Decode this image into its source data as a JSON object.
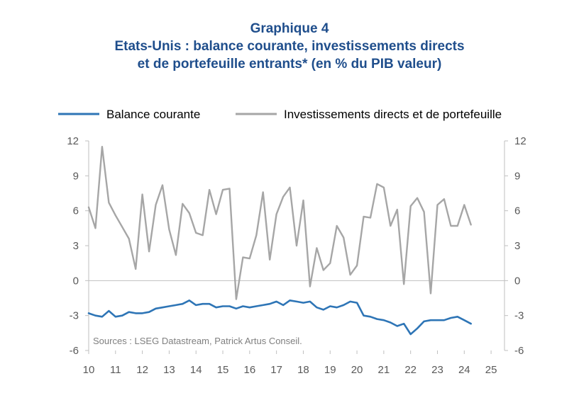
{
  "chart_data": {
    "type": "line",
    "title": "Graphique 4",
    "subtitle_lines": [
      "Etats-Unis : balance courante,  investissements directs",
      "et de portefeuille entrants* (en % du PIB valeur)"
    ],
    "source": "Sources : LSEG Datastream, Patrick Artus Conseil.",
    "xlim": [
      10,
      25.5
    ],
    "ylim": [
      -6,
      12
    ],
    "x_ticks": [
      "10",
      "11",
      "12",
      "13",
      "14",
      "15",
      "16",
      "17",
      "18",
      "19",
      "20",
      "21",
      "22",
      "23",
      "24",
      "25"
    ],
    "y_ticks": [
      "12",
      "9",
      "6",
      "3",
      "0",
      "-3",
      "-6"
    ],
    "legend_position": "top",
    "colors": {
      "balance": "#2e75b6",
      "invest": "#a6a6a6",
      "title": "#1f4e8c"
    },
    "series": [
      {
        "name": "Balance courante",
        "x": [
          10.0,
          10.25,
          10.5,
          10.75,
          11.0,
          11.25,
          11.5,
          11.75,
          12.0,
          12.25,
          12.5,
          12.75,
          13.0,
          13.25,
          13.5,
          13.75,
          14.0,
          14.25,
          14.5,
          14.75,
          15.0,
          15.25,
          15.5,
          15.75,
          16.0,
          16.25,
          16.5,
          16.75,
          17.0,
          17.25,
          17.5,
          17.75,
          18.0,
          18.25,
          18.5,
          18.75,
          19.0,
          19.25,
          19.5,
          19.75,
          20.0,
          20.25,
          20.5,
          20.75,
          21.0,
          21.25,
          21.5,
          21.75,
          22.0,
          22.25,
          22.5,
          22.75,
          23.0,
          23.25,
          23.5,
          23.75,
          24.0,
          24.25
        ],
        "values": [
          -2.8,
          -3.0,
          -3.1,
          -2.6,
          -3.1,
          -3.0,
          -2.7,
          -2.8,
          -2.8,
          -2.7,
          -2.4,
          -2.3,
          -2.2,
          -2.1,
          -2.0,
          -1.7,
          -2.1,
          -2.0,
          -2.0,
          -2.3,
          -2.2,
          -2.2,
          -2.4,
          -2.2,
          -2.3,
          -2.2,
          -2.1,
          -2.0,
          -1.8,
          -2.1,
          -1.7,
          -1.8,
          -1.9,
          -1.8,
          -2.3,
          -2.5,
          -2.2,
          -2.3,
          -2.1,
          -1.8,
          -1.9,
          -3.0,
          -3.1,
          -3.3,
          -3.4,
          -3.6,
          -3.9,
          -3.7,
          -4.6,
          -4.1,
          -3.5,
          -3.4,
          -3.4,
          -3.4,
          -3.2,
          -3.1,
          -3.4,
          -3.7
        ]
      },
      {
        "name": "Investissements directs et de portefeuille",
        "x": [
          10.0,
          10.25,
          10.5,
          10.75,
          11.0,
          11.25,
          11.5,
          11.75,
          12.0,
          12.25,
          12.5,
          12.75,
          13.0,
          13.25,
          13.5,
          13.75,
          14.0,
          14.25,
          14.5,
          14.75,
          15.0,
          15.25,
          15.5,
          15.75,
          16.0,
          16.25,
          16.5,
          16.75,
          17.0,
          17.25,
          17.5,
          17.75,
          18.0,
          18.25,
          18.5,
          18.75,
          19.0,
          19.25,
          19.5,
          19.75,
          20.0,
          20.25,
          20.5,
          20.75,
          21.0,
          21.25,
          21.5,
          21.75,
          22.0,
          22.25,
          22.5,
          22.75,
          23.0,
          23.25,
          23.5,
          23.75,
          24.0,
          24.25
        ],
        "values": [
          6.3,
          4.5,
          11.5,
          6.7,
          5.6,
          4.6,
          3.6,
          1.0,
          7.4,
          2.5,
          6.5,
          8.2,
          4.4,
          2.2,
          6.6,
          5.8,
          4.1,
          3.9,
          7.8,
          5.7,
          7.8,
          7.9,
          -1.6,
          2.0,
          1.9,
          3.9,
          7.6,
          1.8,
          5.7,
          7.2,
          8.0,
          3.0,
          6.9,
          -0.5,
          2.8,
          0.9,
          1.5,
          4.7,
          3.7,
          0.5,
          1.3,
          5.5,
          5.4,
          8.3,
          8.0,
          4.7,
          6.1,
          -0.3,
          6.4,
          7.1,
          5.9,
          -1.1,
          6.5,
          7.0,
          4.7,
          4.7,
          6.5,
          4.8
        ]
      }
    ]
  }
}
